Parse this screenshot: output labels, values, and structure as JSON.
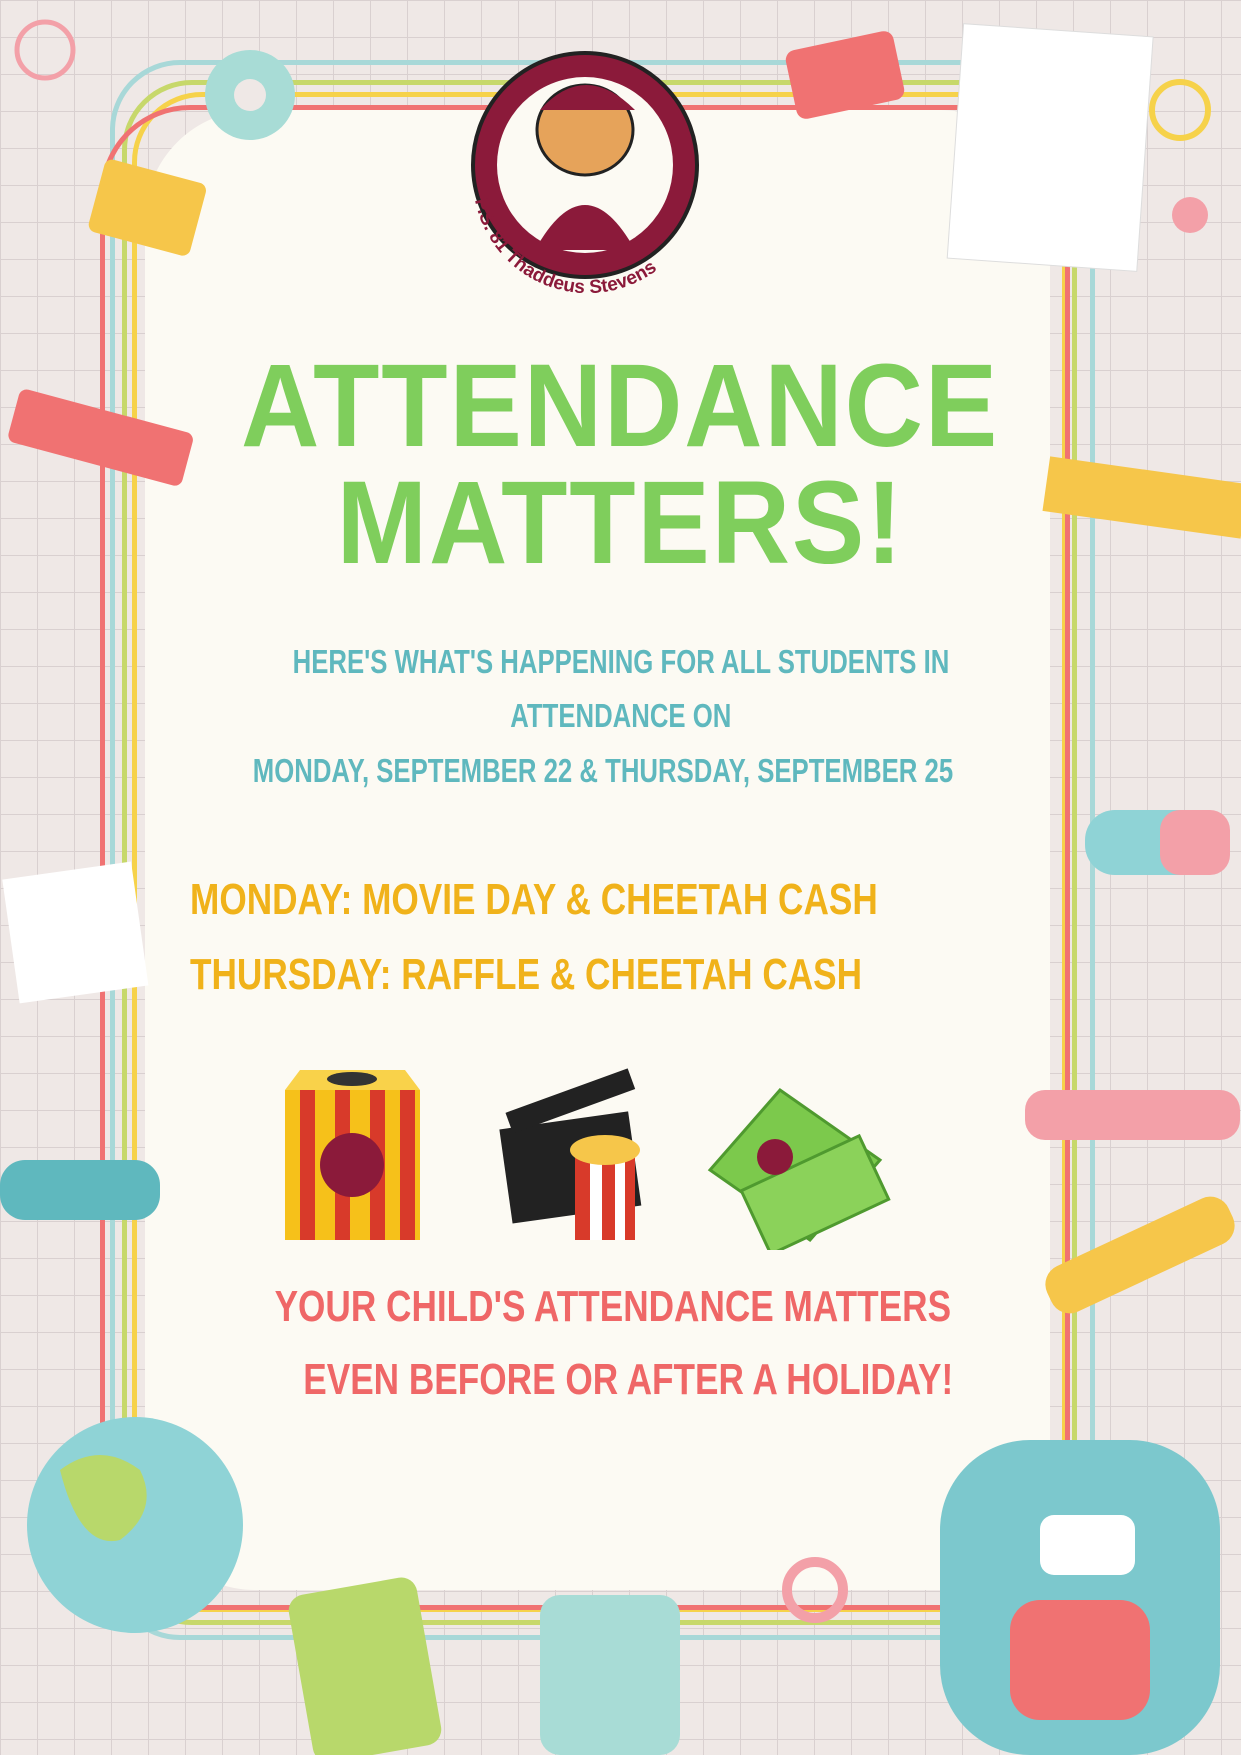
{
  "logo": {
    "text": "P.S. 81 Thaddeus Stevens",
    "ring_color": "#8b1a3a"
  },
  "title": {
    "line1": "ATTENDANCE",
    "line2": "MATTERS!",
    "color": "#7fce5c"
  },
  "intro": {
    "line1": "HERE'S WHAT'S HAPPENING FOR ALL STUDENTS IN",
    "line2": "ATTENDANCE ON",
    "line3": "MONDAY, SEPTEMBER 22 & THURSDAY, SEPTEMBER 25",
    "color": "#5fb8be"
  },
  "events": [
    "MONDAY: MOVIE DAY & CHEETAH CASH",
    "THURSDAY: RAFFLE & CHEETAH CASH"
  ],
  "icons": [
    "raffle-box-icon",
    "movie-clapper-popcorn-icon",
    "cheetah-cash-icon"
  ],
  "footer": {
    "line1": "YOUR CHILD'S ATTENDANCE MATTERS",
    "line2": "EVEN BEFORE OR AFTER A HOLIDAY!",
    "color": "#ef6767"
  },
  "colors": {
    "background": "#efe8e6",
    "panel": "#fcfaf3",
    "gold": "#f0b21a"
  }
}
